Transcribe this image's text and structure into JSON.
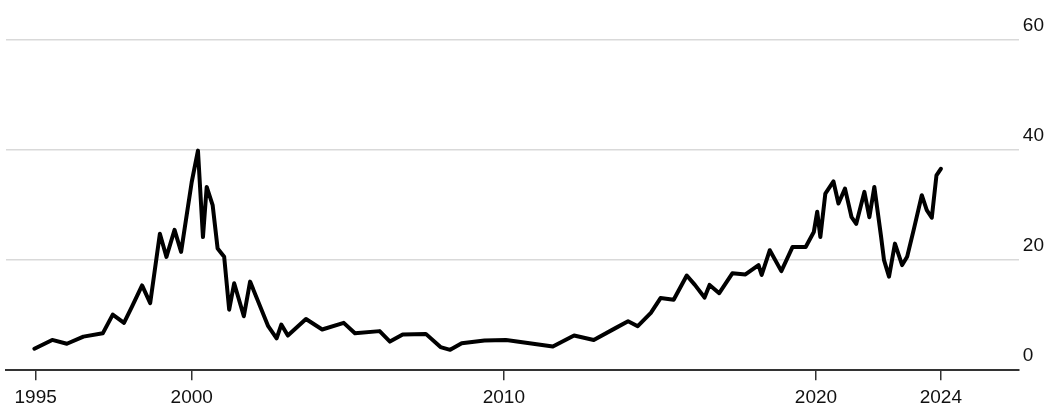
{
  "chart_data": {
    "type": "line",
    "x": [
      1994.96,
      1995.53,
      1996.0,
      1996.53,
      1997.15,
      1997.47,
      1997.83,
      1998.09,
      1998.41,
      1998.67,
      1998.98,
      1999.19,
      1999.45,
      1999.66,
      2000.0,
      2000.2,
      2000.36,
      2000.48,
      2000.67,
      2000.83,
      2001.04,
      2001.2,
      2001.36,
      2001.67,
      2001.87,
      2002.45,
      2002.72,
      2002.87,
      2003.08,
      2003.66,
      2004.18,
      2004.87,
      2005.23,
      2006.02,
      2006.35,
      2006.76,
      2007.5,
      2007.97,
      2008.28,
      2008.65,
      2009.38,
      2010.06,
      2010.42,
      2011.57,
      2012.25,
      2012.88,
      2013.56,
      2013.98,
      2014.29,
      2014.71,
      2015.02,
      2015.44,
      2015.86,
      2016.12,
      2016.43,
      2016.59,
      2016.9,
      2017.32,
      2017.74,
      2018.16,
      2018.26,
      2018.52,
      2018.89,
      2019.25,
      2019.67,
      2019.93,
      2020.04,
      2020.14,
      2020.3,
      2020.56,
      2020.72,
      2020.93,
      2021.14,
      2021.29,
      2021.55,
      2021.71,
      2021.87,
      2022.08,
      2022.18,
      2022.34,
      2022.53,
      2022.76,
      2022.92,
      2023.13,
      2023.39,
      2023.55,
      2023.71,
      2023.86,
      2024.0
    ],
    "series": [
      {
        "color": "#000000",
        "values": [
          3.9,
          5.5,
          4.8,
          6.1,
          6.7,
          10.1,
          8.6,
          11.6,
          15.4,
          12.2,
          24.8,
          20.6,
          25.5,
          21.5,
          34.2,
          39.9,
          24.2,
          33.3,
          30.0,
          22.1,
          20.6,
          11.0,
          15.8,
          9.8,
          16.1,
          8.0,
          5.8,
          8.3,
          6.3,
          9.3,
          7.4,
          8.6,
          6.7,
          7.1,
          5.2,
          6.5,
          6.6,
          4.2,
          3.7,
          4.9,
          5.4,
          5.5,
          5.2,
          4.3,
          6.3,
          5.5,
          7.6,
          8.9,
          8.0,
          10.4,
          13.1,
          12.8,
          17.2,
          15.5,
          13.2,
          15.5,
          14.0,
          17.6,
          17.4,
          19.1,
          17.3,
          21.8,
          18.0,
          22.4,
          22.4,
          25.1,
          28.8,
          24.2,
          32.1,
          34.3,
          30.3,
          33.0,
          27.8,
          26.6,
          32.4,
          27.8,
          33.3,
          24.5,
          20.0,
          17.0,
          23.0,
          19.1,
          20.6,
          25.5,
          31.8,
          29.1,
          27.7,
          35.4,
          36.6
        ]
      }
    ],
    "xlim": [
      1994.05,
      2026.5
    ],
    "xticks": [
      1995,
      2000,
      2010,
      2020,
      2024
    ],
    "ylim": [
      0,
      60
    ],
    "yticks": [
      0,
      20,
      40,
      60
    ],
    "grid": "y",
    "legend": false,
    "marker": "none",
    "line_style": "solid"
  }
}
